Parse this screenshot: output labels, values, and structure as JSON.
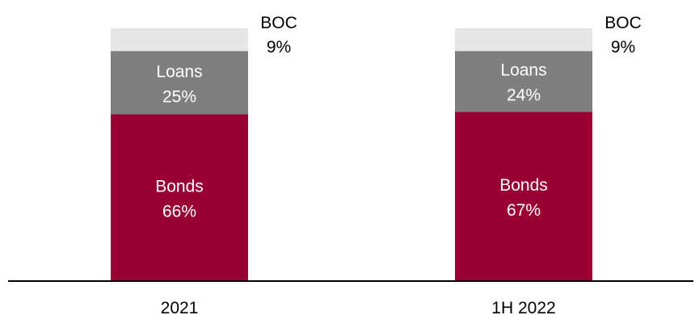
{
  "chart_data": {
    "type": "bar",
    "stacked": true,
    "categories": [
      "2021",
      "1H 2022"
    ],
    "series": [
      {
        "name": "Bonds",
        "values": [
          66,
          67
        ],
        "labels": [
          "66%",
          "67%"
        ],
        "color": "#990033",
        "label_color": "#ffffff"
      },
      {
        "name": "Loans",
        "values": [
          25,
          24
        ],
        "labels": [
          "25%",
          "24%"
        ],
        "color": "#7f7f7f",
        "label_color": "#ffffff"
      },
      {
        "name": "BOC",
        "values": [
          9,
          9
        ],
        "labels": [
          "9%",
          "9%"
        ],
        "color": "#e6e6e6",
        "label_color": "#000000"
      }
    ],
    "ylim": [
      0,
      100
    ],
    "title": "",
    "xlabel": "",
    "ylabel": "",
    "grid": false,
    "legend": "none",
    "axis_color": "#000000"
  }
}
